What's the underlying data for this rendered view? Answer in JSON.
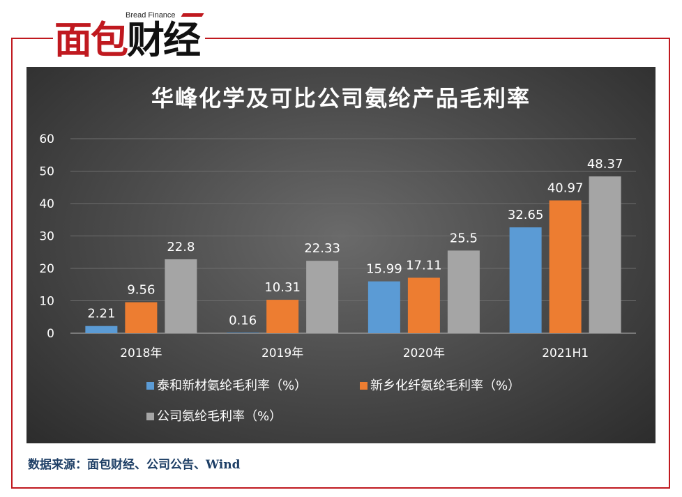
{
  "brand": {
    "name_en": "Bread Finance",
    "name_cn_part1": "面包",
    "name_cn_part2": "财经"
  },
  "source_note": "数据来源：面包财经、公司公告、Wind",
  "colors": {
    "series1": "#5b9bd5",
    "series2": "#ed7d31",
    "series3": "#a5a5a5",
    "accent": "#c0191f"
  },
  "chart_data": {
    "type": "bar",
    "title": "华峰化学及可比公司氨纶产品毛利率",
    "categories": [
      "2018年",
      "2019年",
      "2020年",
      "2021H1"
    ],
    "series": [
      {
        "name": "泰和新材氨纶毛利率（%）",
        "values": [
          2.21,
          0.16,
          15.99,
          32.65
        ],
        "labels": [
          "2.21",
          "0.16",
          "15.99",
          "32.65"
        ]
      },
      {
        "name": "新乡化纤氨纶毛利率（%）",
        "values": [
          9.56,
          10.31,
          17.11,
          40.97
        ],
        "labels": [
          "9.56",
          "10.31",
          "17.11",
          "40.97"
        ]
      },
      {
        "name": "公司氨纶毛利率（%）",
        "values": [
          22.8,
          22.33,
          25.5,
          48.37
        ],
        "labels": [
          "22.8",
          "22.33",
          "25.5",
          "48.37"
        ]
      }
    ],
    "ylim": [
      0,
      60
    ],
    "yticks": [
      "0",
      "10",
      "20",
      "30",
      "40",
      "50",
      "60"
    ],
    "ytick_values": [
      0,
      10,
      20,
      30,
      40,
      50,
      60
    ],
    "grid": true,
    "legend_position": "bottom"
  }
}
